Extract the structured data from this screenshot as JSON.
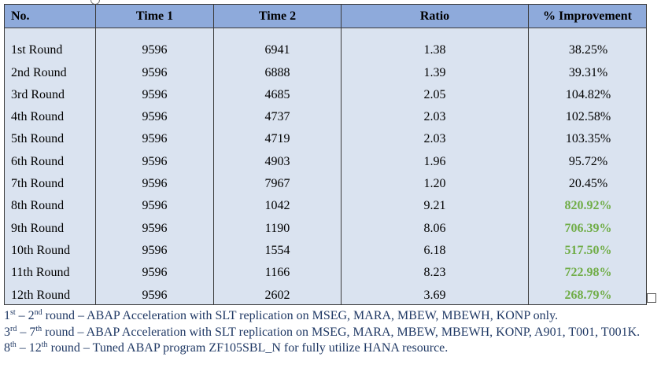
{
  "table": {
    "headers": {
      "no": "No.",
      "time1": "Time 1",
      "time2": "Time 2",
      "ratio": "Ratio",
      "improvement": "% Improvement"
    },
    "rows": [
      {
        "no": "1st Round",
        "time1": "9596",
        "time2": "6941",
        "ratio": "1.38",
        "improvement": "38.25%"
      },
      {
        "no": "2nd Round",
        "time1": "9596",
        "time2": "6888",
        "ratio": "1.39",
        "improvement": "39.31%"
      },
      {
        "no": "3rd Round",
        "time1": "9596",
        "time2": "4685",
        "ratio": "2.05",
        "improvement": "104.82%"
      },
      {
        "no": "4th Round",
        "time1": "9596",
        "time2": "4737",
        "ratio": "2.03",
        "improvement": "102.58%"
      },
      {
        "no": "5th Round",
        "time1": "9596",
        "time2": "4719",
        "ratio": "2.03",
        "improvement": "103.35%"
      },
      {
        "no": "6th Round",
        "time1": "9596",
        "time2": "4903",
        "ratio": "1.96",
        "improvement": "95.72%"
      },
      {
        "no": "7th Round",
        "time1": "9596",
        "time2": "7967",
        "ratio": "1.20",
        "improvement": "20.45%"
      },
      {
        "no": "8th Round",
        "time1": "9596",
        "time2": "1042",
        "ratio": "9.21",
        "improvement": "820.92%"
      },
      {
        "no": "9th Round",
        "time1": "9596",
        "time2": "1190",
        "ratio": "8.06",
        "improvement": "706.39%"
      },
      {
        "no": "10th Round",
        "time1": "9596",
        "time2": "1554",
        "ratio": "6.18",
        "improvement": "517.50%"
      },
      {
        "no": "11th Round",
        "time1": "9596",
        "time2": "1166",
        "ratio": "8.23",
        "improvement": "722.98%"
      },
      {
        "no": "12th Round",
        "time1": "9596",
        "time2": "2602",
        "ratio": "3.69",
        "improvement": "268.79%"
      }
    ]
  },
  "notes": {
    "n1": {
      "a": "1",
      "a_sup": "st",
      "b": " – 2",
      "b_sup": "nd",
      "text": " round – ABAP Acceleration with SLT replication on MSEG, MARA, MBEW, MBEWH, KONP only."
    },
    "n2": {
      "a": "3",
      "a_sup": "rd",
      "b": " – 7",
      "b_sup": "th",
      "text": " round – ABAP Acceleration with SLT replication on MSEG, MARA, MBEW, MBEWH, KONP, A901, T001, T001K."
    },
    "n3": {
      "a": "8",
      "a_sup": "th",
      "b": " – 12",
      "b_sup": "th",
      "text": " round – Tuned ABAP program ZF105SBL_N for fully utilize HANA resource."
    }
  },
  "colors": {
    "header_bg": "#8eaadb",
    "row_bg": "#dae3f0",
    "highlight_text": "#70ad47",
    "note_text": "#1f3864"
  }
}
